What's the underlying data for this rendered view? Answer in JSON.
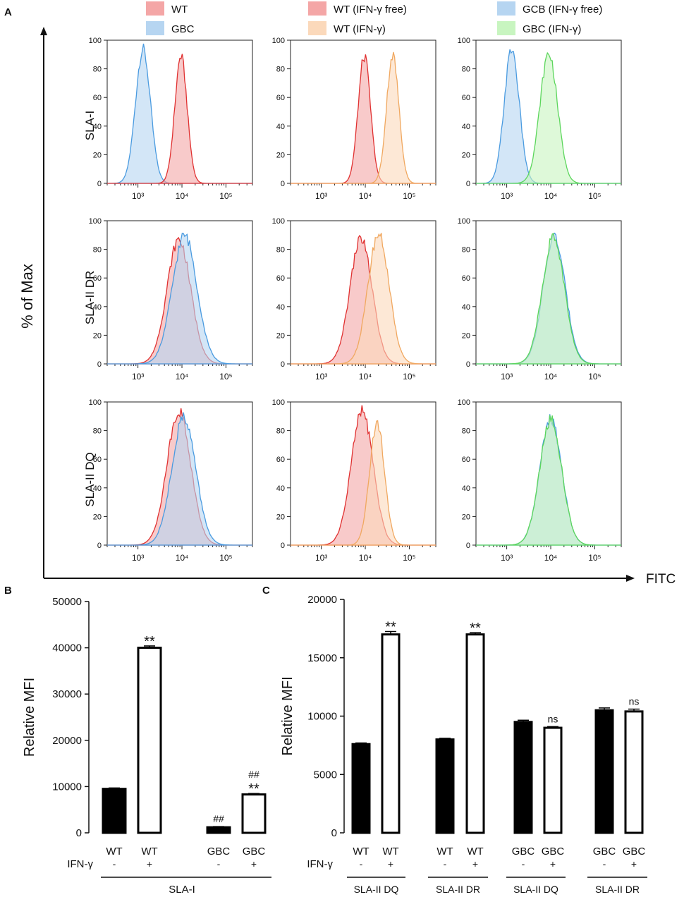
{
  "figure": {
    "panels": {
      "a": "A",
      "b": "B",
      "c": "C"
    },
    "legend": [
      {
        "label": "WT",
        "color": "#f4a6a6"
      },
      {
        "label": "GBC",
        "color": "#b6d5f1"
      },
      {
        "label": "WT (IFN-γ free)",
        "color": "#f4a6a6"
      },
      {
        "label": "WT (IFN-γ)",
        "color": "#fbd9bb"
      },
      {
        "label": "GCB (IFN-γ free)",
        "color": "#b6d5f1"
      },
      {
        "label": "GBC (IFN-γ)",
        "color": "#c8f5c0"
      }
    ],
    "y_axis_title": "% of Max",
    "x_axis_title": "FITC",
    "row_labels": [
      "SLA-I",
      "SLA-II DR",
      "SLA-II DQ"
    ],
    "hist_yticks": [
      "0",
      "20",
      "40",
      "60",
      "80",
      "100"
    ],
    "hist_xticks": [
      "10³",
      "10⁴",
      "10⁵"
    ],
    "colors": {
      "wt": "#e03131",
      "wt_fill": "#f4a6a6",
      "gbc": "#4a9be0",
      "gbc_fill": "#b6d5f1",
      "ifn": "#f0a860",
      "ifn_fill": "#fbd9bb",
      "gbc_ifn": "#5cd65c",
      "gbc_ifn_fill": "#c8f5c0",
      "overlap_fill": "#d6c2de",
      "overlap_fill2": "#f2b08c",
      "overlap_fill3": "#c8e7d6"
    }
  },
  "chart_data": [
    {
      "type": "histogram",
      "panel": "A",
      "ylabel": "% of Max",
      "xlabel": "FITC",
      "x_scale": "log",
      "xlim": [
        200,
        400000
      ],
      "ylim": [
        0,
        100
      ],
      "grid": [
        [
          {
            "series": [
              {
                "name": "GBC",
                "peak": 1300,
                "sigma": 0.17,
                "height": 96,
                "color": "gbc"
              },
              {
                "name": "WT",
                "peak": 9500,
                "sigma": 0.14,
                "height": 91,
                "color": "wt"
              }
            ]
          },
          {
            "series": [
              {
                "name": "WT (IFN-γ free)",
                "peak": 9500,
                "sigma": 0.14,
                "height": 91,
                "color": "wt"
              },
              {
                "name": "WT (IFN-γ)",
                "peak": 42000,
                "sigma": 0.14,
                "height": 92,
                "color": "ifn"
              }
            ]
          },
          {
            "series": [
              {
                "name": "GCB (IFN-γ free)",
                "peak": 1300,
                "sigma": 0.17,
                "height": 96,
                "color": "gbc"
              },
              {
                "name": "GBC (IFN-γ)",
                "peak": 9000,
                "sigma": 0.2,
                "height": 93,
                "color": "gbc_ifn"
              }
            ]
          }
        ],
        [
          {
            "series": [
              {
                "name": "WT",
                "peak": 8500,
                "sigma": 0.27,
                "height": 89,
                "color": "wt"
              },
              {
                "name": "GBC",
                "peak": 11500,
                "sigma": 0.28,
                "height": 92,
                "color": "gbc"
              }
            ]
          },
          {
            "series": [
              {
                "name": "WT (IFN-γ free)",
                "peak": 8000,
                "sigma": 0.25,
                "height": 90,
                "color": "wt"
              },
              {
                "name": "WT (IFN-γ)",
                "peak": 20000,
                "sigma": 0.24,
                "height": 93,
                "color": "ifn"
              }
            ]
          },
          {
            "series": [
              {
                "name": "GCB (IFN-γ free)",
                "peak": 12000,
                "sigma": 0.25,
                "height": 91,
                "color": "gbc"
              },
              {
                "name": "GBC (IFN-γ)",
                "peak": 11500,
                "sigma": 0.25,
                "height": 91,
                "color": "gbc_ifn"
              }
            ]
          }
        ],
        [
          {
            "series": [
              {
                "name": "WT",
                "peak": 8500,
                "sigma": 0.27,
                "height": 96,
                "color": "wt"
              },
              {
                "name": "GBC",
                "peak": 11000,
                "sigma": 0.27,
                "height": 92,
                "color": "gbc"
              }
            ]
          },
          {
            "series": [
              {
                "name": "WT (IFN-γ free)",
                "peak": 8500,
                "sigma": 0.25,
                "height": 96,
                "color": "wt"
              },
              {
                "name": "WT (IFN-γ)",
                "peak": 18500,
                "sigma": 0.17,
                "height": 88,
                "color": "ifn"
              }
            ]
          },
          {
            "series": [
              {
                "name": "GCB (IFN-γ free)",
                "peak": 10000,
                "sigma": 0.25,
                "height": 90,
                "color": "gbc"
              },
              {
                "name": "GBC (IFN-γ)",
                "peak": 10000,
                "sigma": 0.25,
                "height": 90,
                "color": "gbc_ifn"
              }
            ]
          }
        ]
      ]
    },
    {
      "type": "bar",
      "panel": "B",
      "ylabel": "Relative MFI",
      "ylim": [
        0,
        50000
      ],
      "yticks": [
        "0",
        "10000",
        "20000",
        "30000",
        "40000",
        "50000"
      ],
      "categories": [
        "WT",
        "WT",
        "GBC",
        "GBC"
      ],
      "ifn": [
        "-",
        "+",
        "-",
        "+"
      ],
      "values": [
        9500,
        40000,
        1200,
        8300
      ],
      "errors": [
        200,
        400,
        150,
        200
      ],
      "fill": [
        "black",
        "white",
        "black",
        "white"
      ],
      "annotations": [
        {
          "index": 1,
          "lines": [
            "**"
          ]
        },
        {
          "index": 2,
          "lines": [
            "##"
          ]
        },
        {
          "index": 3,
          "lines": [
            "##",
            "**"
          ]
        }
      ],
      "row_label": "IFN-γ",
      "group_label": "SLA-I"
    },
    {
      "type": "bar",
      "panel": "C",
      "ylabel": "Relative MFI",
      "ylim": [
        0,
        20000
      ],
      "yticks": [
        "0",
        "5000",
        "10000",
        "15000",
        "20000"
      ],
      "categories": [
        "WT",
        "WT",
        "WT",
        "WT",
        "GBC",
        "GBC",
        "GBC",
        "GBC"
      ],
      "ifn": [
        "-",
        "+",
        "-",
        "+",
        "-",
        "+",
        "-",
        "+"
      ],
      "values": [
        7600,
        17000,
        8000,
        17000,
        9500,
        9000,
        10500,
        10400
      ],
      "errors": [
        100,
        250,
        100,
        150,
        150,
        100,
        200,
        200
      ],
      "fill": [
        "black",
        "white",
        "black",
        "white",
        "black",
        "white",
        "black",
        "white"
      ],
      "annotations": [
        {
          "index": 1,
          "lines": [
            "**"
          ]
        },
        {
          "index": 3,
          "lines": [
            "**"
          ]
        },
        {
          "index": 5,
          "lines": [
            "ns"
          ]
        },
        {
          "index": 7,
          "lines": [
            "ns"
          ]
        }
      ],
      "row_label": "IFN-γ",
      "groups": [
        "SLA-II DQ",
        "SLA-II DR",
        "SLA-II DQ",
        "SLA-II DR"
      ]
    }
  ]
}
